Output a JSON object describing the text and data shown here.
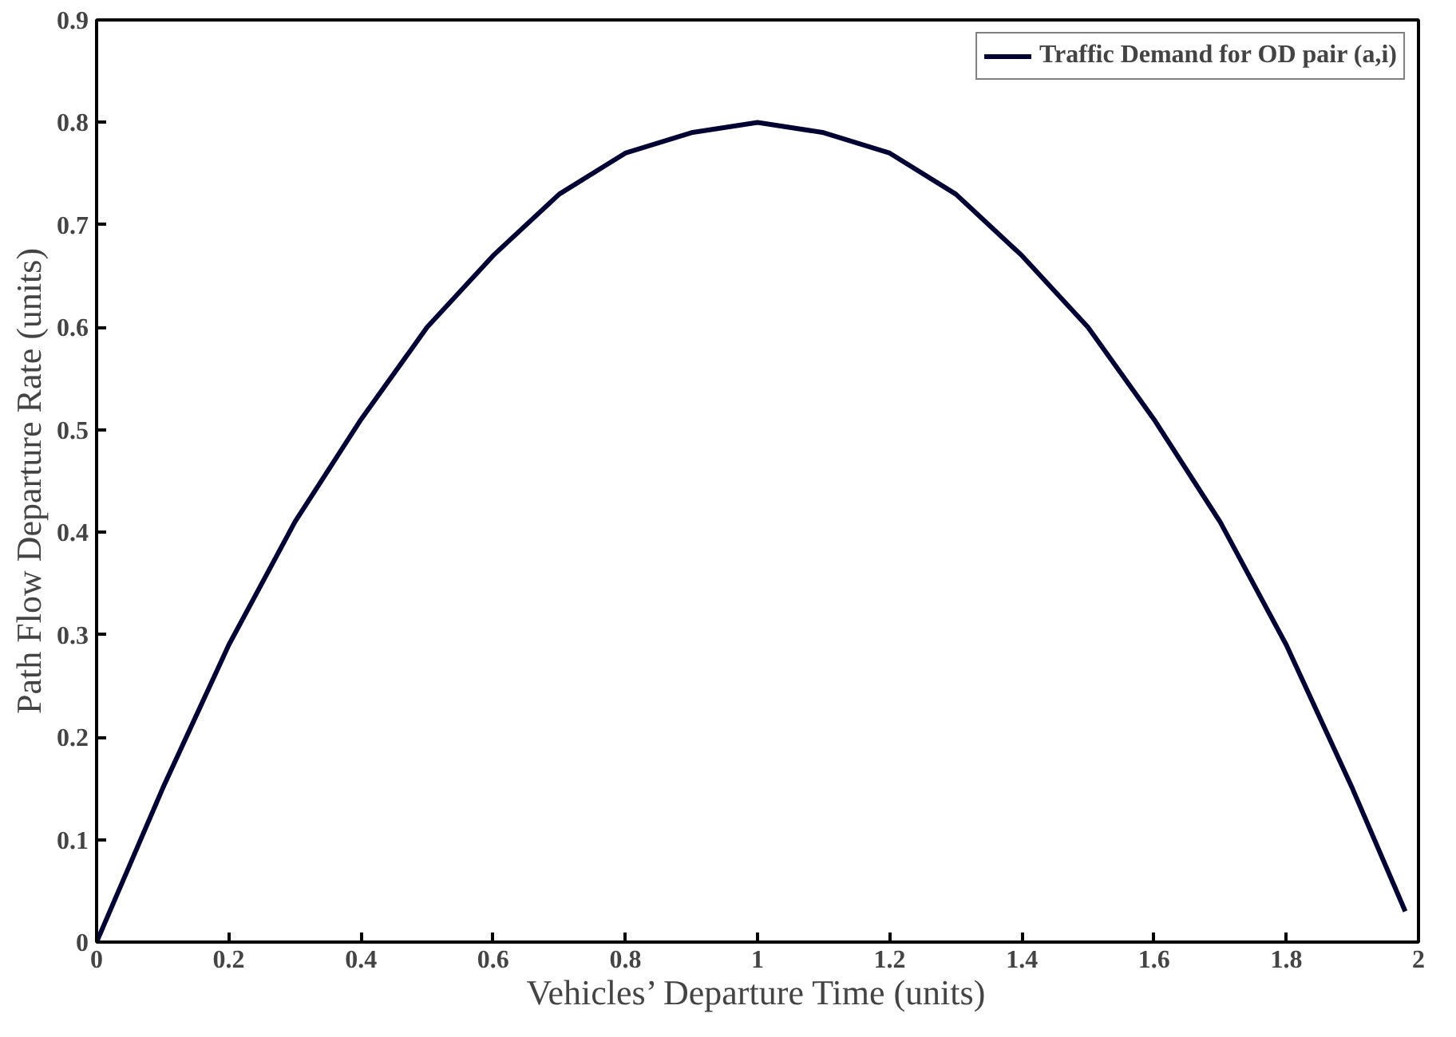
{
  "chart_data": {
    "type": "line",
    "xlabel": "Vehicles’ Departure Time (units)",
    "ylabel": "Path Flow Departure Rate (units)",
    "x": [
      0,
      0.1,
      0.2,
      0.3,
      0.4,
      0.5,
      0.6,
      0.7,
      0.8,
      0.9,
      1,
      1.1,
      1.2,
      1.3,
      1.4,
      1.5,
      1.6,
      1.7,
      1.8,
      1.9,
      1.98
    ],
    "series": [
      {
        "name": "Traffic Demand for OD pair (a,i)",
        "color": "#000033",
        "values": [
          0,
          0.15,
          0.29,
          0.41,
          0.51,
          0.6,
          0.67,
          0.73,
          0.77,
          0.79,
          0.8,
          0.79,
          0.77,
          0.73,
          0.67,
          0.6,
          0.51,
          0.41,
          0.29,
          0.15,
          0.03
        ]
      }
    ],
    "xlim": [
      0,
      2
    ],
    "ylim": [
      0,
      0.9
    ],
    "xticks": [
      0,
      0.2,
      0.4,
      0.6,
      0.8,
      1,
      1.2,
      1.4,
      1.6,
      1.8,
      2
    ],
    "yticks": [
      0,
      0.1,
      0.2,
      0.3,
      0.4,
      0.5,
      0.6,
      0.7,
      0.8,
      0.9
    ],
    "grid": false,
    "legend": "top right",
    "marker": "none",
    "line_style": "solid"
  }
}
